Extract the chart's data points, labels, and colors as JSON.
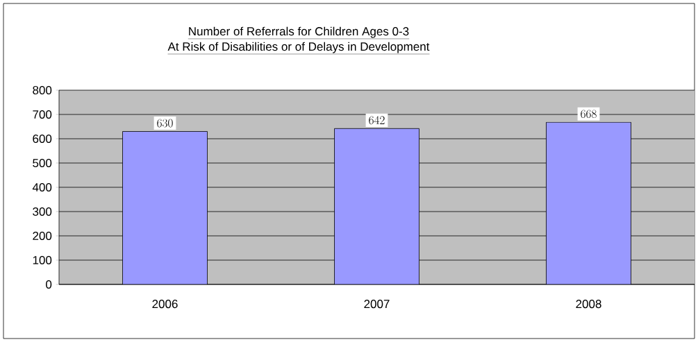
{
  "chart_data": {
    "type": "bar",
    "title": "Number of Referrals for Children Ages 0-3",
    "subtitle": "At Risk of Disabilities or of Delays in Development",
    "categories": [
      "2006",
      "2007",
      "2008"
    ],
    "values": [
      630,
      642,
      668
    ],
    "color": "#9999ff",
    "ylim": [
      0,
      800
    ],
    "yticks": [
      0,
      100,
      200,
      300,
      400,
      500,
      600,
      700,
      800
    ],
    "grid": "y",
    "data_labels": true
  }
}
